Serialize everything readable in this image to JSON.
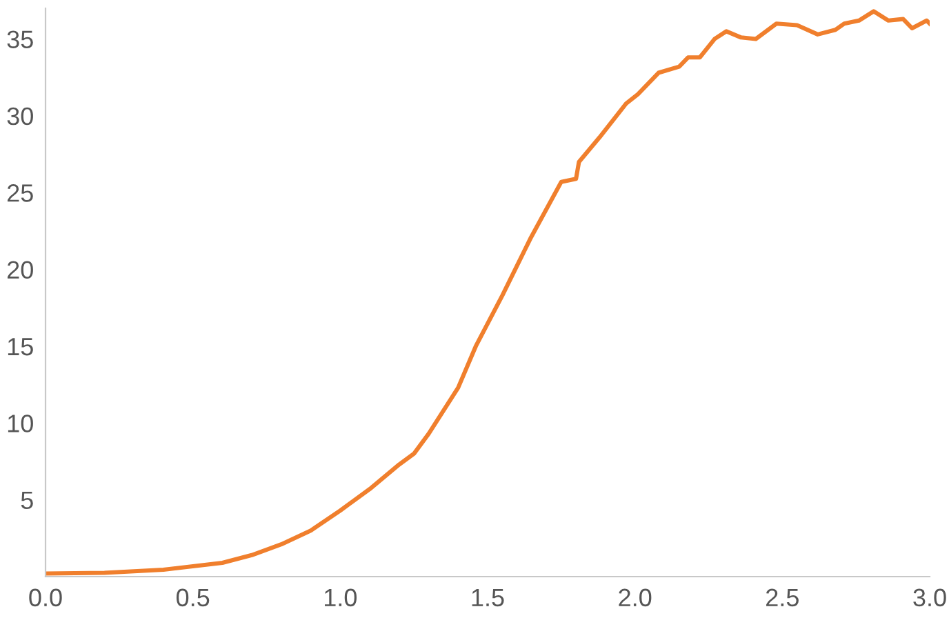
{
  "chart_data": {
    "type": "line",
    "x": [
      0,
      0.2,
      0.4,
      0.6,
      0.7,
      0.8,
      0.9,
      1.0,
      1.1,
      1.2,
      1.25,
      1.3,
      1.4,
      1.46,
      1.55,
      1.645,
      1.75,
      1.8,
      1.81,
      1.88,
      1.97,
      2.01,
      2.08,
      2.15,
      2.18,
      2.22,
      2.27,
      2.31,
      2.36,
      2.41,
      2.48,
      2.55,
      2.62,
      2.68,
      2.71,
      2.76,
      2.81,
      2.86,
      2.91,
      2.94,
      2.99,
      3.0
    ],
    "series": [
      {
        "color": "#f07f2d",
        "values": [
          0.2,
          0.25,
          0.45,
          0.9,
          1.4,
          2.1,
          3.0,
          4.3,
          5.7,
          7.3,
          8.0,
          9.3,
          12.3,
          15.0,
          18.3,
          22.0,
          25.7,
          25.9,
          27.0,
          28.6,
          30.8,
          31.4,
          32.8,
          33.2,
          33.8,
          33.8,
          35.0,
          35.5,
          35.1,
          35.0,
          36.0,
          35.9,
          35.3,
          35.6,
          36.0,
          36.2,
          36.8,
          36.2,
          36.3,
          35.7,
          36.2,
          36.0
        ]
      }
    ],
    "xlim": [
      0,
      3.0
    ],
    "ylim": [
      0,
      37
    ],
    "xticks": [
      {
        "value": 0,
        "label": "0.0"
      },
      0.5,
      {
        "value": 1,
        "label": "1.0"
      },
      1.5,
      {
        "value": 2,
        "label": "2.0"
      },
      2.5,
      {
        "value": 3,
        "label": "3.0"
      }
    ],
    "yticks": [
      5,
      10,
      15,
      20,
      25,
      30,
      35
    ],
    "grid": false,
    "marker": "none",
    "line_style": "solid"
  }
}
